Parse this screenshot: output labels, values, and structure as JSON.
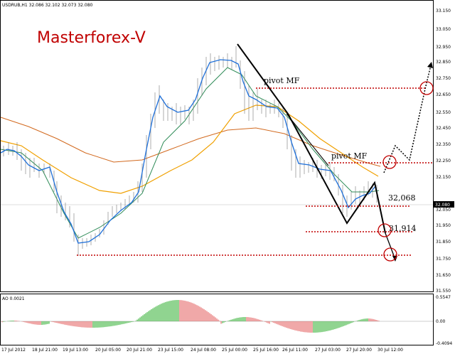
{
  "header": {
    "symbol_info": "USDRUB,H1  32.086 32.102 32.073 32.080"
  },
  "logo": {
    "text": "Masterforex-V"
  },
  "annotations": {
    "pivot_upper": "pivot MF",
    "pivot_lower": "pivot MF",
    "level_1": "32,068",
    "level_2": "31,914"
  },
  "price_axis": {
    "labels": [
      "33.150",
      "33.050",
      "32.950",
      "32.850",
      "32.750",
      "32.650",
      "32.550",
      "32.450",
      "32.350",
      "32.250",
      "32.150",
      "32.050",
      "31.950",
      "31.850",
      "31.750",
      "31.650",
      "31.550"
    ],
    "current_price": "32.080"
  },
  "time_axis": {
    "labels": [
      "17 Jul 2012",
      "18 Jul 21:00",
      "19 Jul 13:00",
      "20 Jul 05:00",
      "20 Jul 21:00",
      "23 Jul 15:00",
      "24 Jul 08:00",
      "25 Jul 00:00",
      "25 Jul 16:00",
      "26 Jul 11:00",
      "27 Jul 03:00",
      "27 Jul 20:00",
      "30 Jul 12:00"
    ]
  },
  "indicator": {
    "title": "AO 0.0021",
    "labels": [
      "0.5547",
      "0.00",
      "-0.4094"
    ]
  },
  "colors": {
    "ma_blue": "#1e6fd9",
    "ma_green": "#2e8b57",
    "ma_orange": "#f0a000",
    "ma_red": "#d2691e",
    "level_line": "#c00000",
    "ao_up": "#22aa22",
    "ao_down": "#e05050"
  },
  "icons": [
    "target-circle-icon",
    "arrow-icon"
  ]
}
